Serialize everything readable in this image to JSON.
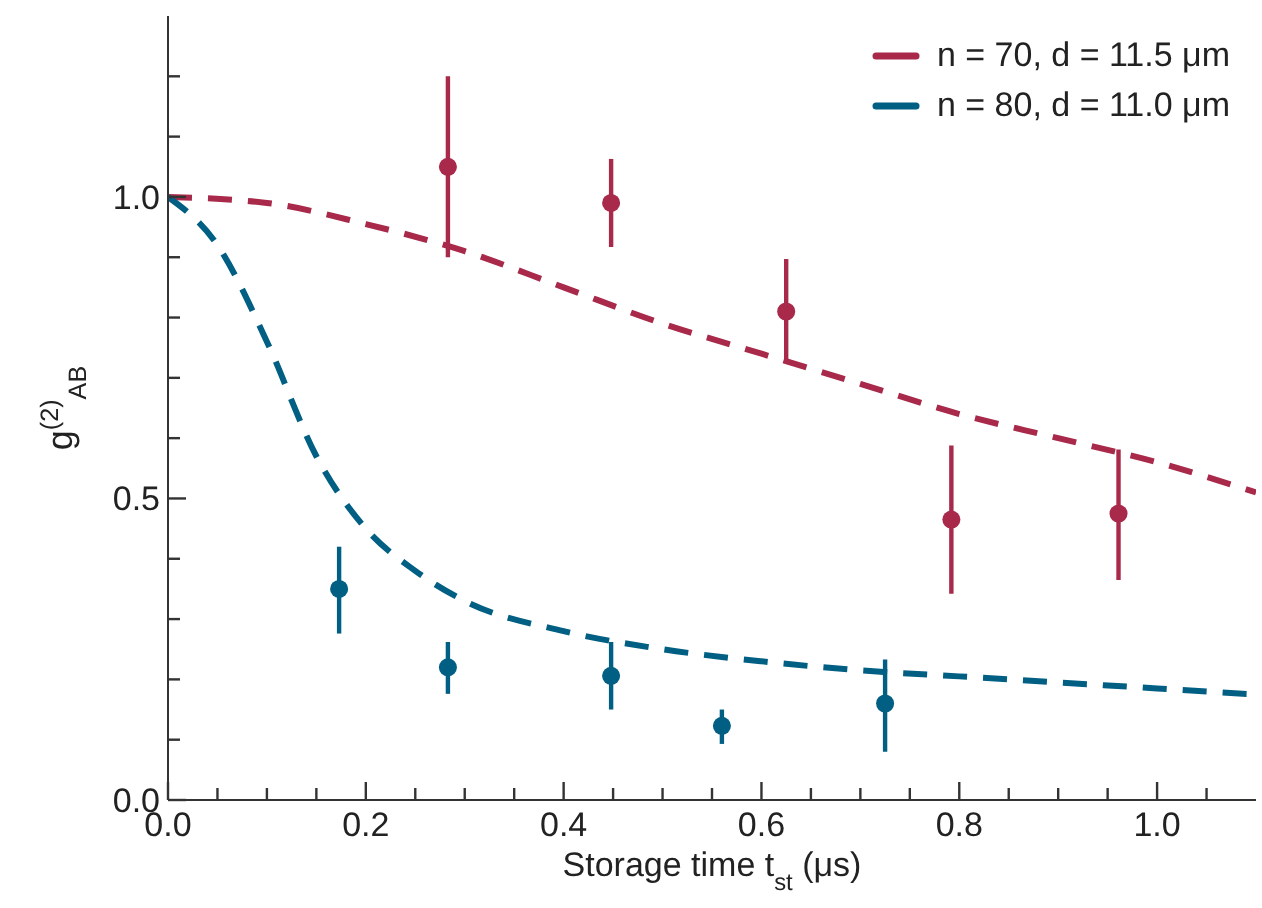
{
  "chart_data": {
    "type": "scatter",
    "xlabel": "Storage time t$_{st}$ (μs)",
    "ylabel": "g$^{(2)}$$_{AB}$",
    "xlim": [
      0,
      1.1
    ],
    "xticks": [
      {
        "value": 0,
        "label": "0.0"
      },
      {
        "value": 0.05,
        "label": null
      },
      {
        "value": 0.1,
        "label": null
      },
      {
        "value": 0.15,
        "label": null
      },
      {
        "value": 0.2,
        "label": "0.2"
      },
      {
        "value": 0.25,
        "label": null
      },
      {
        "value": 0.3,
        "label": null
      },
      {
        "value": 0.35,
        "label": null
      },
      {
        "value": 0.4,
        "label": "0.4"
      },
      {
        "value": 0.45,
        "label": null
      },
      {
        "value": 0.5,
        "label": null
      },
      {
        "value": 0.55,
        "label": null
      },
      {
        "value": 0.6,
        "label": "0.6"
      },
      {
        "value": 0.65,
        "label": null
      },
      {
        "value": 0.7,
        "label": null
      },
      {
        "value": 0.75,
        "label": null
      },
      {
        "value": 0.8,
        "label": "0.8"
      },
      {
        "value": 0.85,
        "label": null
      },
      {
        "value": 0.9,
        "label": null
      },
      {
        "value": 0.95,
        "label": null
      },
      {
        "value": 1,
        "label": "1.0"
      },
      {
        "value": 1.05,
        "label": null
      }
    ],
    "ylim": [
      0,
      1.3
    ],
    "yticks": [
      {
        "value": 0,
        "label": "0.0"
      },
      {
        "value": 0.1,
        "label": null
      },
      {
        "value": 0.2,
        "label": null
      },
      {
        "value": 0.3,
        "label": null
      },
      {
        "value": 0.4,
        "label": null
      },
      {
        "value": 0.5,
        "label": "0.5"
      },
      {
        "value": 0.6,
        "label": null
      },
      {
        "value": 0.7,
        "label": null
      },
      {
        "value": 0.8,
        "label": null
      },
      {
        "value": 0.9,
        "label": null
      },
      {
        "value": 1,
        "label": "1.0"
      },
      {
        "value": 1.1,
        "label": null
      },
      {
        "value": 1.2,
        "label": null
      }
    ],
    "grid": false,
    "legend": "top right",
    "marker": "circle",
    "series": [
      {
        "name": "n = 70, d = 11.5 μm",
        "type": "line",
        "line_style": "dashed",
        "marker": "none",
        "color": "#a8294a",
        "x": [
          0,
          0.1,
          0.2,
          0.3,
          0.4,
          0.5,
          0.6,
          0.7,
          0.8,
          0.9,
          1.0,
          1.1
        ],
        "values": [
          1.0,
          0.99,
          0.955,
          0.91,
          0.85,
          0.79,
          0.74,
          0.69,
          0.64,
          0.6,
          0.56,
          0.51
        ]
      },
      {
        "name": "n = 80, d = 11.0 μm",
        "type": "line",
        "line_style": "dashed",
        "marker": "none",
        "color": "#005f83",
        "x": [
          0,
          0.05,
          0.1,
          0.15,
          0.2,
          0.25,
          0.3,
          0.4,
          0.5,
          0.6,
          0.7,
          0.8,
          0.9,
          1.0,
          1.1
        ],
        "values": [
          1.0,
          0.92,
          0.76,
          0.57,
          0.45,
          0.38,
          0.33,
          0.28,
          0.25,
          0.23,
          0.215,
          0.205,
          0.195,
          0.185,
          0.175
        ]
      },
      {
        "color": "#a8294a",
        "x": [
          0.283,
          0.448,
          0.625,
          0.792,
          0.961
        ],
        "values": [
          1.05,
          0.99,
          0.81,
          0.465,
          0.475
        ],
        "errors": [
          [
            0.9,
            1.2
          ],
          [
            0.917,
            1.063
          ],
          [
            0.731,
            0.897
          ],
          [
            0.342,
            0.588
          ],
          [
            0.365,
            0.581
          ]
        ]
      },
      {
        "color": "#005f83",
        "x": [
          0.173,
          0.283,
          0.448,
          0.56,
          0.725
        ],
        "values": [
          0.35,
          0.22,
          0.206,
          0.123,
          0.16
        ],
        "errors": [
          [
            0.276,
            0.42
          ],
          [
            0.176,
            0.262
          ],
          [
            0.15,
            0.262
          ],
          [
            0.093,
            0.15
          ],
          [
            0.08,
            0.233
          ]
        ]
      }
    ]
  }
}
